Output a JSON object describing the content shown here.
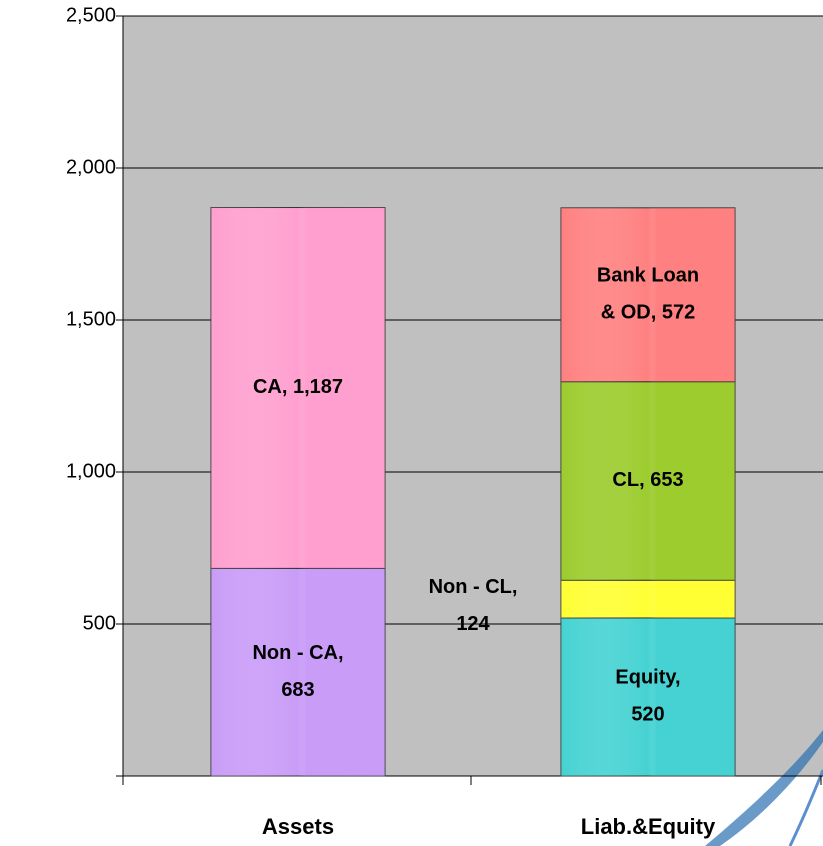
{
  "chart_data": {
    "type": "stacked_bar",
    "categories": [
      "Assets",
      "Liab.&Equity"
    ],
    "series": [
      {
        "name": "Non - CA",
        "color": "#c99cf7",
        "values": [
          683,
          null
        ],
        "value_labels": [
          [
            "Non - CA,",
            "683"
          ],
          null
        ]
      },
      {
        "name": "CA",
        "color": "#ff9fcf",
        "values": [
          1187,
          null
        ],
        "value_labels": [
          [
            "CA,  1,187"
          ],
          null
        ]
      },
      {
        "name": "Equity",
        "color": "#46d2d2",
        "values": [
          null,
          520
        ],
        "value_labels": [
          null,
          [
            "Equity,",
            "520"
          ]
        ]
      },
      {
        "name": "Non - CL",
        "color": "#ffff33",
        "values": [
          null,
          124
        ],
        "value_labels": [
          null,
          [
            "Non - CL,",
            "124"
          ]
        ]
      },
      {
        "name": "CL",
        "color": "#9ccc2e",
        "values": [
          null,
          653
        ],
        "value_labels": [
          null,
          [
            "CL,  653"
          ]
        ]
      },
      {
        "name": "Bank Loan & OD",
        "color": "#ff8080",
        "values": [
          null,
          572
        ],
        "value_labels": [
          null,
          [
            "Bank Loan",
            "& OD,  572"
          ]
        ]
      }
    ],
    "ylim": [
      0,
      2500
    ],
    "yticks": [
      {
        "value": 500,
        "label": "500"
      },
      {
        "value": 1000,
        "label": "1,000"
      },
      {
        "value": 1500,
        "label": "1,500"
      },
      {
        "value": 2000,
        "label": "2,000"
      },
      {
        "value": 2500,
        "label": "2,500"
      }
    ],
    "grid": true
  }
}
